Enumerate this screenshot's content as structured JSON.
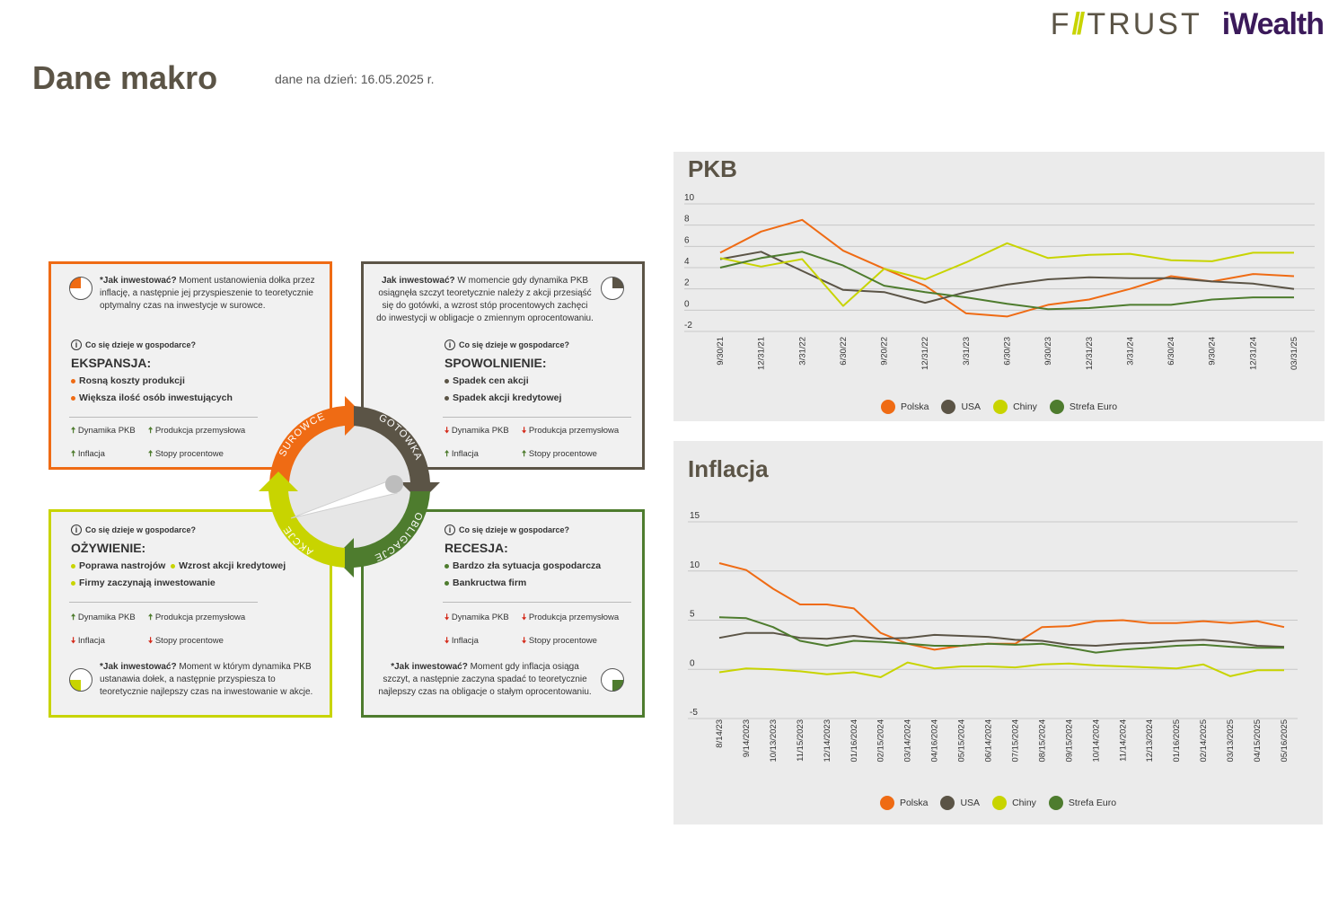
{
  "header": {
    "logo_fi": "F",
    "logo_slash": "//",
    "logo_trust": "TRUST",
    "logo_iwealth": "iWealth",
    "title": "Dane makro",
    "date_note": "dane na dzień: 16.05.2025 r."
  },
  "colors": {
    "polska": "#ef6b14",
    "usa": "#5b5446",
    "chiny": "#c8d400",
    "strefa_euro": "#4e7c2e"
  },
  "cycle": {
    "arrows": {
      "surowce": "SUROWCE",
      "gotowka": "GOTÓWKA",
      "obligacje": "OBLIGACJE",
      "akcje": "AKCJE"
    },
    "question": "Co się dzieje w gospodarce?",
    "how_label": "*Jak inwestować?",
    "how_label_plain": "Jak inwestować?",
    "indicators": {
      "pkb": "Dynamika PKB",
      "prod": "Produkcja przemysłowa",
      "inf": "Inflacja",
      "rates": "Stopy procentowe"
    },
    "expansion": {
      "how": "Moment ustanowienia dołka przez inflację, a następnie jej przyspieszenie to teoretycznie optymalny czas na inwestycje w surowce.",
      "phase": "EKSPANSJA:",
      "b1": "Rosną koszty produkcji",
      "b2": "Większa ilość osób inwestujących"
    },
    "slowdown": {
      "how": "W momencie gdy dynamika PKB osiągnęła szczyt teoretycznie należy z akcji przesiąść się do gotówki, a wzrost stóp procentowych zachęci do inwestycji w obligacje o zmiennym oprocentowaniu.",
      "phase": "SPOWOLNIENIE:",
      "b1": "Spadek cen akcji",
      "b2": "Spadek akcji kredytowej"
    },
    "recovery": {
      "how": "Moment w którym dynamika PKB ustanawia dołek, a następnie przyspiesza to teoretycznie najlepszy czas na inwestowanie w akcje.",
      "phase": "OŻYWIENIE:",
      "b1": "Poprawa nastrojów",
      "b2": "Wzrost akcji kredytowej",
      "b3": "Firmy zaczynają inwestowanie"
    },
    "recession": {
      "how": "Moment gdy inflacja osiąga szczyt, a następnie zaczyna spadać to teoretycznie najlepszy czas na obligacje o stałym oprocentowaniu.",
      "phase": "RECESJA:",
      "b1": "Bardzo zła sytuacja gospodarcza",
      "b2": "Bankructwa firm"
    }
  },
  "chart_data": [
    {
      "type": "line",
      "title": "PKB",
      "categories": [
        "9/30/21",
        "12/31/21",
        "3/31/22",
        "6/30/22",
        "9/20/22",
        "12/31/22",
        "3/31/23",
        "6/30/23",
        "9/30/23",
        "12/31/23",
        "3/31/24",
        "6/30/24",
        "9/30/24",
        "12/31/24",
        "03/31/25"
      ],
      "ylim": [
        -2,
        10
      ],
      "yticks": [
        "-2",
        "0",
        "2",
        "4",
        "6",
        "8",
        "10"
      ],
      "series": [
        {
          "name": "Polska",
          "values": [
            5.4,
            7.4,
            8.5,
            5.6,
            3.9,
            2.3,
            -0.3,
            -0.6,
            0.5,
            1.0,
            2.0,
            3.2,
            2.7,
            3.4,
            3.2
          ]
        },
        {
          "name": "USA",
          "values": [
            4.8,
            5.5,
            3.7,
            1.9,
            1.7,
            0.7,
            1.7,
            2.4,
            2.9,
            3.1,
            3.0,
            3.0,
            2.7,
            2.5,
            2.0
          ]
        },
        {
          "name": "Chiny",
          "values": [
            4.9,
            4.1,
            4.8,
            0.4,
            3.9,
            2.9,
            4.5,
            6.3,
            4.9,
            5.2,
            5.3,
            4.7,
            4.6,
            5.4,
            5.4
          ]
        },
        {
          "name": "Strefa Euro",
          "values": [
            4.0,
            4.9,
            5.5,
            4.2,
            2.3,
            1.7,
            1.2,
            0.6,
            0.1,
            0.2,
            0.5,
            0.5,
            1.0,
            1.2,
            1.2
          ]
        }
      ],
      "legend_position": "bottom"
    },
    {
      "type": "line",
      "title": "Inflacja",
      "categories": [
        "8/14/23",
        "9/14/2023",
        "10/13/2023",
        "11/15/2023",
        "12/14/2023",
        "01/16/2024",
        "02/15/2024",
        "03/14/2024",
        "04/16/2024",
        "05/15/2024",
        "06/14/2024",
        "07/15/2024",
        "08/15/2024",
        "09/15/2024",
        "10/14/2024",
        "11/14/2024",
        "12/13/2024",
        "01/16/2025",
        "02/14/2025",
        "03/13/2025",
        "04/15/2025",
        "05/16/2025"
      ],
      "ylim": [
        -5,
        15
      ],
      "yticks": [
        "-5",
        "0",
        "5",
        "10",
        "15"
      ],
      "series": [
        {
          "name": "Polska",
          "values": [
            10.8,
            10.1,
            8.2,
            6.6,
            6.6,
            6.2,
            3.7,
            2.6,
            2.0,
            2.4,
            2.6,
            2.6,
            4.3,
            4.4,
            4.9,
            5.0,
            4.7,
            4.7,
            4.9,
            4.7,
            4.9,
            4.3
          ]
        },
        {
          "name": "USA",
          "values": [
            3.2,
            3.7,
            3.7,
            3.2,
            3.1,
            3.4,
            3.1,
            3.2,
            3.5,
            3.4,
            3.3,
            3.0,
            2.9,
            2.5,
            2.4,
            2.6,
            2.7,
            2.9,
            3.0,
            2.8,
            2.4,
            2.3
          ]
        },
        {
          "name": "Chiny",
          "values": [
            -0.3,
            0.1,
            0.0,
            -0.2,
            -0.5,
            -0.3,
            -0.8,
            0.7,
            0.1,
            0.3,
            0.3,
            0.2,
            0.5,
            0.6,
            0.4,
            0.3,
            0.2,
            0.1,
            0.5,
            -0.7,
            -0.1,
            -0.1
          ]
        },
        {
          "name": "Strefa Euro",
          "values": [
            5.3,
            5.2,
            4.3,
            2.9,
            2.4,
            2.9,
            2.8,
            2.6,
            2.4,
            2.4,
            2.6,
            2.5,
            2.6,
            2.2,
            1.7,
            2.0,
            2.2,
            2.4,
            2.5,
            2.3,
            2.2,
            2.2
          ]
        }
      ],
      "legend_position": "bottom"
    }
  ]
}
